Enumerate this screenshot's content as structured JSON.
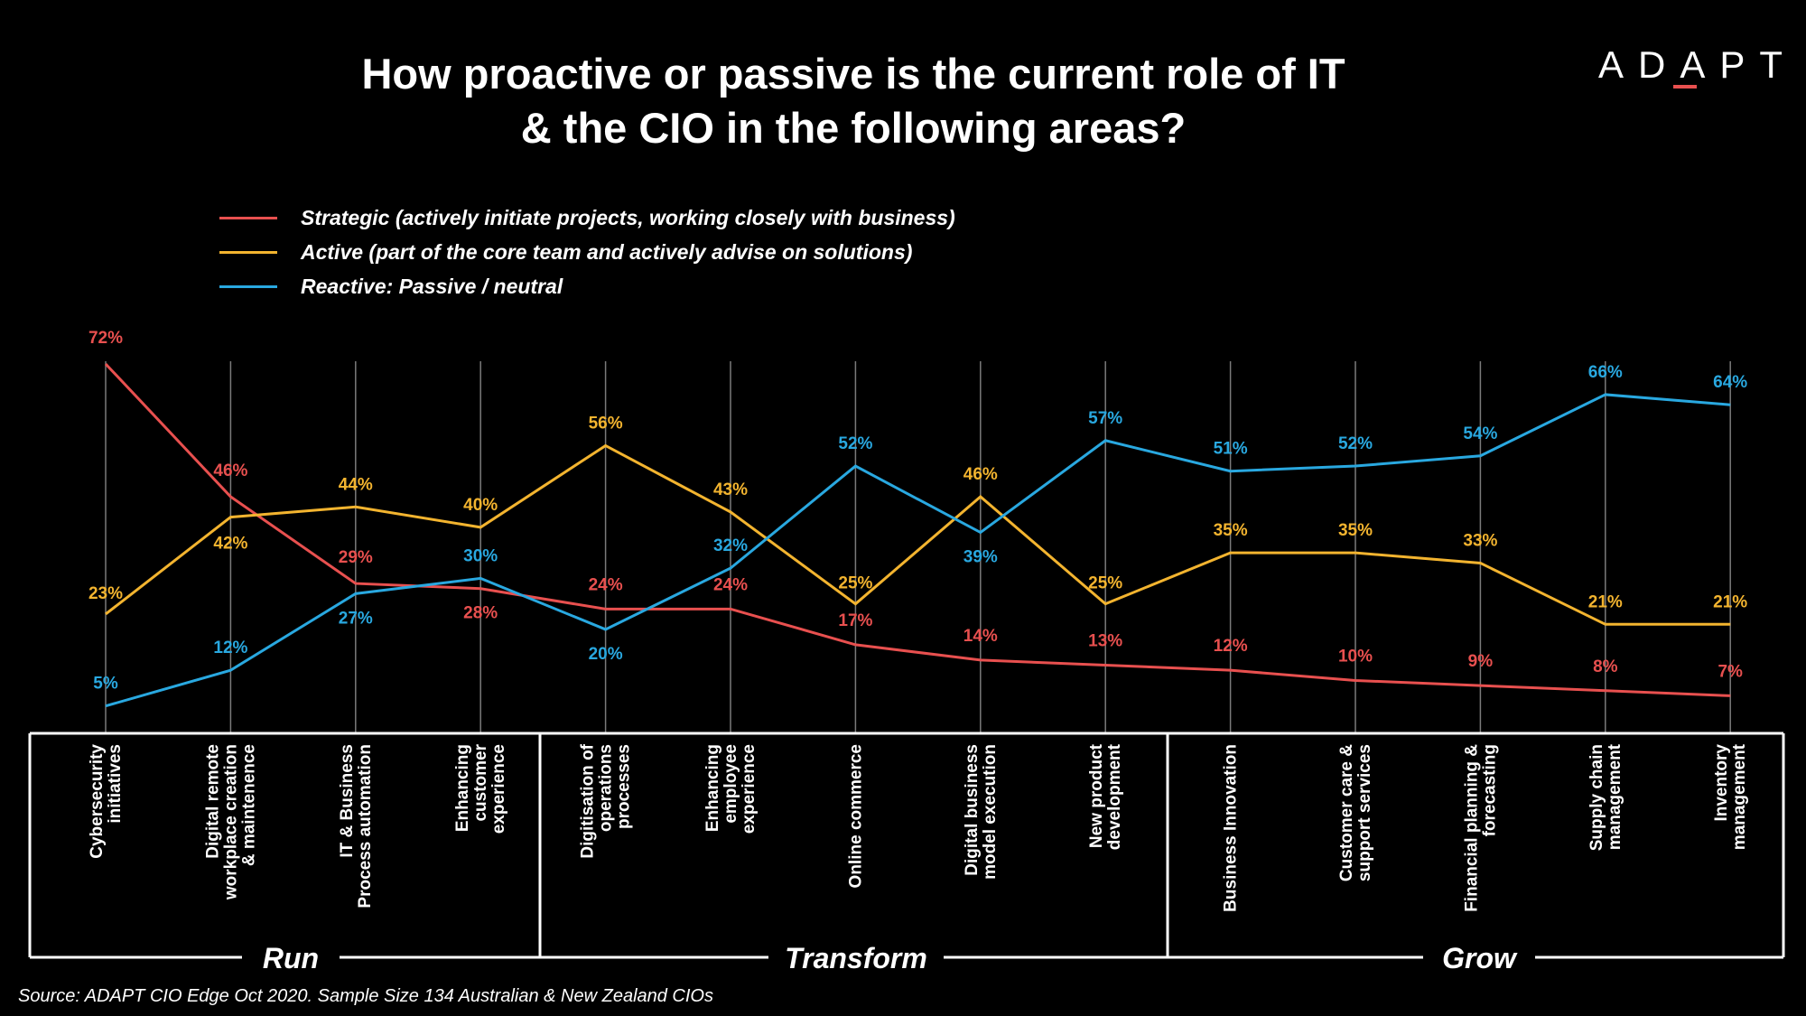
{
  "title_line1": "How proactive or passive is the current role of IT",
  "title_line2": "& the CIO in the following areas?",
  "logo": "ADAPT",
  "source": "Source: ADAPT CIO Edge Oct 2020. Sample Size 134 Australian & New Zealand CIOs",
  "colors": {
    "strategic": "#e8504f",
    "active": "#f3b42f",
    "reactive": "#29a8e0",
    "background": "#000000"
  },
  "chart_data": {
    "type": "line",
    "title": "How proactive or passive is the current role of IT & the CIO in the following areas?",
    "categories": [
      [
        "Cybersecurity",
        "initiatives"
      ],
      [
        "Digital remote",
        "workplace creation",
        "& maintenence"
      ],
      [
        "IT & Business",
        "Process automation"
      ],
      [
        "Enhancing",
        "customer",
        "experience"
      ],
      [
        "Digitisation of",
        "operations",
        "processes"
      ],
      [
        "Enhancing",
        "employee",
        "experience"
      ],
      [
        "Online commerce"
      ],
      [
        "Digital business",
        "model execution"
      ],
      [
        "New product",
        "development"
      ],
      [
        "Business Innovation"
      ],
      [
        "Customer care &",
        "support services"
      ],
      [
        "Financial planning &",
        "forecasting"
      ],
      [
        "Supply chain",
        "management"
      ],
      [
        "Inventory",
        "management"
      ]
    ],
    "series": [
      {
        "name": "Strategic (actively initiate projects, working closely with business)",
        "key": "strategic",
        "values": [
          72,
          46,
          29,
          28,
          24,
          24,
          17,
          14,
          13,
          12,
          10,
          9,
          8,
          7
        ]
      },
      {
        "name": "Active (part of the core team and actively advise on solutions)",
        "key": "active",
        "values": [
          23,
          42,
          44,
          40,
          56,
          43,
          25,
          46,
          25,
          35,
          35,
          33,
          21,
          21
        ]
      },
      {
        "name": "Reactive: Passive / neutral",
        "key": "reactive",
        "values": [
          5,
          12,
          27,
          30,
          20,
          32,
          52,
          39,
          57,
          51,
          52,
          54,
          66,
          64
        ]
      }
    ],
    "groups": [
      {
        "label": "Run",
        "start": 0,
        "end": 3
      },
      {
        "label": "Transform",
        "start": 4,
        "end": 8
      },
      {
        "label": "Grow",
        "start": 9,
        "end": 13
      }
    ],
    "value_suffix": "%",
    "legend_position": "top-left",
    "ylim": [
      0,
      72
    ]
  }
}
